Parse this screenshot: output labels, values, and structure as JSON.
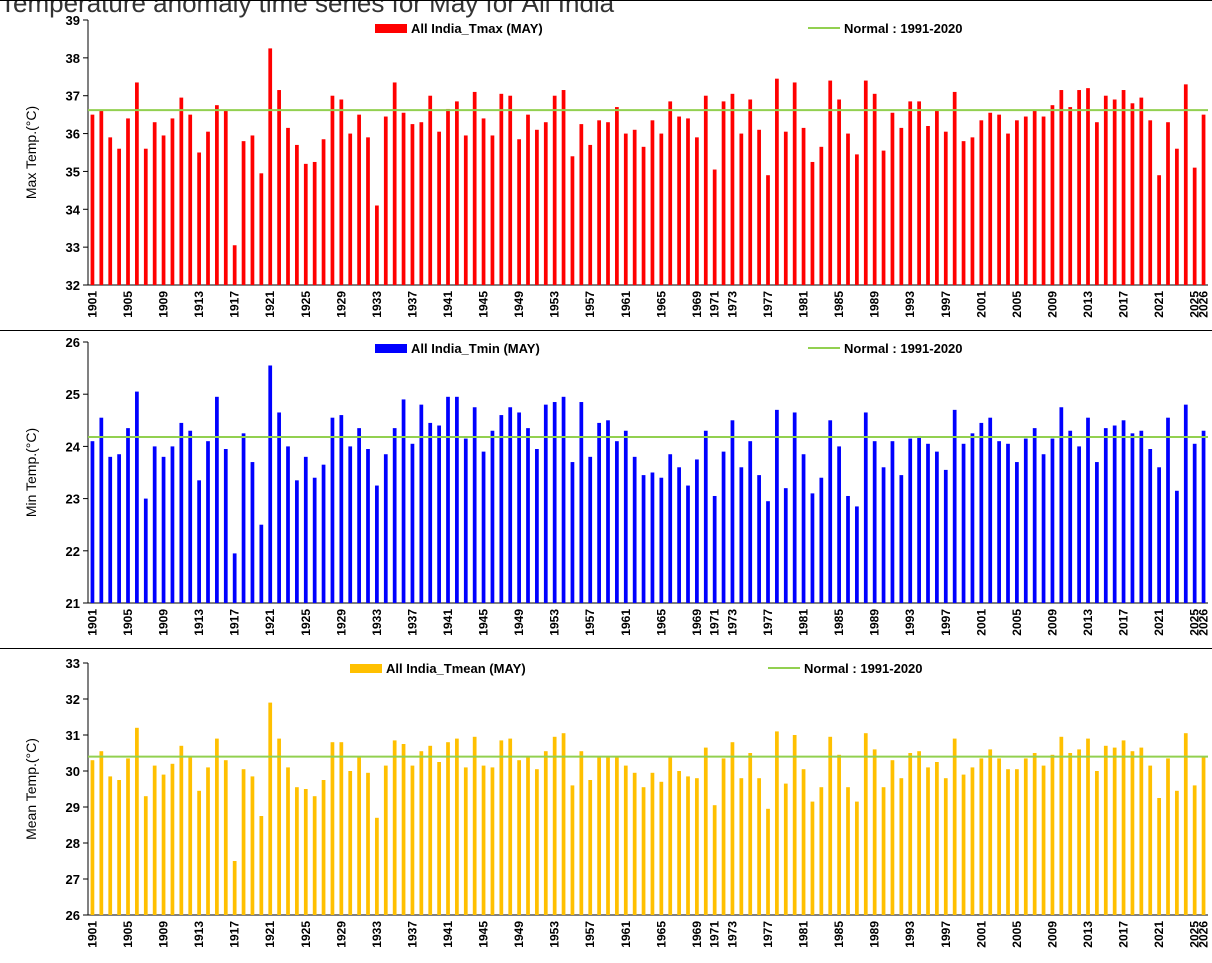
{
  "page": {
    "title": "Temperature anomaly time series for May for All India"
  },
  "chart_data": [
    {
      "type": "bar",
      "ylabel": "Max Temp.(°C)",
      "ylim": [
        32,
        39
      ],
      "yticks": [
        32,
        33,
        34,
        35,
        36,
        37,
        38,
        39
      ],
      "series": [
        {
          "name": "All India_Tmax (MAY)",
          "color": "#ff0000",
          "x": [
            1901,
            1902,
            1903,
            1904,
            1905,
            1906,
            1907,
            1908,
            1909,
            1910,
            1911,
            1912,
            1913,
            1914,
            1915,
            1916,
            1917,
            1918,
            1919,
            1920,
            1921,
            1922,
            1923,
            1924,
            1925,
            1926,
            1927,
            1928,
            1929,
            1930,
            1931,
            1932,
            1933,
            1934,
            1935,
            1936,
            1937,
            1938,
            1939,
            1940,
            1941,
            1942,
            1943,
            1944,
            1945,
            1946,
            1947,
            1948,
            1949,
            1950,
            1951,
            1952,
            1953,
            1954,
            1955,
            1956,
            1957,
            1958,
            1959,
            1960,
            1961,
            1962,
            1963,
            1964,
            1965,
            1966,
            1967,
            1968,
            1969,
            1970,
            1971,
            1972,
            1973,
            1974,
            1975,
            1976,
            1977,
            1978,
            1979,
            1980,
            1981,
            1982,
            1983,
            1984,
            1985,
            1986,
            1987,
            1988,
            1989,
            1990,
            1991,
            1992,
            1993,
            1994,
            1995,
            1996,
            1997,
            1998,
            1999,
            2000,
            2001,
            2002,
            2003,
            2004,
            2005,
            2006,
            2007,
            2008,
            2009,
            2010,
            2011,
            2012,
            2013,
            2014,
            2015,
            2016,
            2017,
            2018,
            2019,
            2020,
            2021,
            2022,
            2023,
            2024,
            2025,
            2026
          ],
          "values": [
            36.5,
            36.6,
            35.9,
            35.6,
            36.4,
            37.35,
            35.6,
            36.3,
            35.95,
            36.4,
            36.95,
            36.5,
            35.5,
            36.05,
            36.75,
            36.6,
            33.05,
            35.8,
            35.95,
            34.95,
            38.25,
            37.15,
            36.15,
            35.7,
            35.2,
            35.25,
            35.85,
            37.0,
            36.9,
            36.0,
            36.5,
            35.9,
            34.1,
            36.45,
            37.35,
            36.55,
            36.25,
            36.3,
            37.0,
            36.05,
            36.65,
            36.85,
            35.95,
            37.1,
            36.4,
            35.95,
            37.05,
            37.0,
            35.85,
            36.5,
            36.1,
            36.3,
            37.0,
            37.15,
            35.4,
            36.25,
            35.7,
            36.35,
            36.3,
            36.7,
            36.0,
            36.1,
            35.65,
            36.35,
            36.0,
            36.85,
            36.45,
            36.4,
            35.9,
            37.0,
            35.05,
            36.85,
            37.05,
            36.0,
            36.9,
            36.1,
            34.9,
            37.45,
            36.05,
            37.35,
            36.15,
            35.25,
            35.65,
            37.4,
            36.9,
            36.0,
            35.45,
            37.4,
            37.05,
            35.55,
            36.55,
            36.15,
            36.85,
            36.85,
            36.2,
            36.6,
            36.05,
            37.1,
            35.8,
            35.9,
            36.35,
            36.55,
            36.5,
            36.0,
            36.35,
            36.45,
            36.6,
            36.45,
            36.75,
            37.15,
            36.7,
            37.15,
            37.2,
            36.3,
            37.0,
            36.9,
            37.15,
            36.8,
            36.95,
            36.35,
            34.9,
            36.3,
            35.6,
            37.3,
            35.1,
            36.5
          ]
        },
        {
          "name": "Normal : 1991-2020",
          "color": "#92d050",
          "values": [
            36.62
          ]
        }
      ]
    },
    {
      "type": "bar",
      "ylabel": "Min Temp.(°C)",
      "ylim": [
        21,
        26
      ],
      "yticks": [
        21,
        22,
        23,
        24,
        25,
        26
      ],
      "series": [
        {
          "name": "All India_Tmin (MAY)",
          "color": "#0000ff",
          "x": [
            1901,
            1902,
            1903,
            1904,
            1905,
            1906,
            1907,
            1908,
            1909,
            1910,
            1911,
            1912,
            1913,
            1914,
            1915,
            1916,
            1917,
            1918,
            1919,
            1920,
            1921,
            1922,
            1923,
            1924,
            1925,
            1926,
            1927,
            1928,
            1929,
            1930,
            1931,
            1932,
            1933,
            1934,
            1935,
            1936,
            1937,
            1938,
            1939,
            1940,
            1941,
            1942,
            1943,
            1944,
            1945,
            1946,
            1947,
            1948,
            1949,
            1950,
            1951,
            1952,
            1953,
            1954,
            1955,
            1956,
            1957,
            1958,
            1959,
            1960,
            1961,
            1962,
            1963,
            1964,
            1965,
            1966,
            1967,
            1968,
            1969,
            1970,
            1971,
            1972,
            1973,
            1974,
            1975,
            1976,
            1977,
            1978,
            1979,
            1980,
            1981,
            1982,
            1983,
            1984,
            1985,
            1986,
            1987,
            1988,
            1989,
            1990,
            1991,
            1992,
            1993,
            1994,
            1995,
            1996,
            1997,
            1998,
            1999,
            2000,
            2001,
            2002,
            2003,
            2004,
            2005,
            2006,
            2007,
            2008,
            2009,
            2010,
            2011,
            2012,
            2013,
            2014,
            2015,
            2016,
            2017,
            2018,
            2019,
            2020,
            2021,
            2022,
            2023,
            2024,
            2025,
            2026
          ],
          "values": [
            24.1,
            24.55,
            23.8,
            23.85,
            24.35,
            25.05,
            23.0,
            24.0,
            23.8,
            24.0,
            24.45,
            24.3,
            23.35,
            24.1,
            24.95,
            23.95,
            21.95,
            24.25,
            23.7,
            22.5,
            25.55,
            24.65,
            24.0,
            23.35,
            23.8,
            23.4,
            23.65,
            24.55,
            24.6,
            24.0,
            24.35,
            23.95,
            23.25,
            23.85,
            24.35,
            24.9,
            24.05,
            24.8,
            24.45,
            24.4,
            24.95,
            24.95,
            24.15,
            24.75,
            23.9,
            24.3,
            24.6,
            24.75,
            24.65,
            24.35,
            23.95,
            24.8,
            24.85,
            24.95,
            23.7,
            24.85,
            23.8,
            24.45,
            24.5,
            24.1,
            24.3,
            23.8,
            23.45,
            23.5,
            23.4,
            23.85,
            23.6,
            23.25,
            23.75,
            24.3,
            23.05,
            23.9,
            24.5,
            23.6,
            24.1,
            23.45,
            22.95,
            24.7,
            23.2,
            24.65,
            23.85,
            23.1,
            23.4,
            24.5,
            24.0,
            23.05,
            22.85,
            24.65,
            24.1,
            23.6,
            24.1,
            23.45,
            24.15,
            24.2,
            24.05,
            23.9,
            23.55,
            24.7,
            24.05,
            24.25,
            24.45,
            24.55,
            24.1,
            24.05,
            23.7,
            24.15,
            24.35,
            23.85,
            24.15,
            24.75,
            24.3,
            24.0,
            24.55,
            23.7,
            24.35,
            24.4,
            24.5,
            24.25,
            24.3,
            23.95,
            23.6,
            24.55,
            23.15,
            24.8,
            24.05,
            24.3
          ]
        },
        {
          "name": "Normal : 1991-2020",
          "color": "#92d050",
          "values": [
            24.18
          ]
        }
      ]
    },
    {
      "type": "bar",
      "ylabel": "Mean Temp.(°C)",
      "ylim": [
        26,
        33
      ],
      "yticks": [
        26,
        27,
        28,
        29,
        30,
        31,
        32,
        33
      ],
      "series": [
        {
          "name": "All India_Tmean (MAY)",
          "color": "#ffc000",
          "x": [
            1901,
            1902,
            1903,
            1904,
            1905,
            1906,
            1907,
            1908,
            1909,
            1910,
            1911,
            1912,
            1913,
            1914,
            1915,
            1916,
            1917,
            1918,
            1919,
            1920,
            1921,
            1922,
            1923,
            1924,
            1925,
            1926,
            1927,
            1928,
            1929,
            1930,
            1931,
            1932,
            1933,
            1934,
            1935,
            1936,
            1937,
            1938,
            1939,
            1940,
            1941,
            1942,
            1943,
            1944,
            1945,
            1946,
            1947,
            1948,
            1949,
            1950,
            1951,
            1952,
            1953,
            1954,
            1955,
            1956,
            1957,
            1958,
            1959,
            1960,
            1961,
            1962,
            1963,
            1964,
            1965,
            1966,
            1967,
            1968,
            1969,
            1970,
            1971,
            1972,
            1973,
            1974,
            1975,
            1976,
            1977,
            1978,
            1979,
            1980,
            1981,
            1982,
            1983,
            1984,
            1985,
            1986,
            1987,
            1988,
            1989,
            1990,
            1991,
            1992,
            1993,
            1994,
            1995,
            1996,
            1997,
            1998,
            1999,
            2000,
            2001,
            2002,
            2003,
            2004,
            2005,
            2006,
            2007,
            2008,
            2009,
            2010,
            2011,
            2012,
            2013,
            2014,
            2015,
            2016,
            2017,
            2018,
            2019,
            2020,
            2021,
            2022,
            2023,
            2024,
            2025,
            2026
          ],
          "values": [
            30.3,
            30.55,
            29.85,
            29.75,
            30.35,
            31.2,
            29.3,
            30.15,
            29.9,
            30.2,
            30.7,
            30.4,
            29.45,
            30.1,
            30.9,
            30.3,
            27.5,
            30.05,
            29.85,
            28.75,
            31.9,
            30.9,
            30.1,
            29.55,
            29.5,
            29.3,
            29.75,
            30.8,
            30.8,
            30.0,
            30.4,
            29.95,
            28.7,
            30.15,
            30.85,
            30.75,
            30.15,
            30.55,
            30.7,
            30.25,
            30.8,
            30.9,
            30.1,
            30.95,
            30.15,
            30.1,
            30.85,
            30.9,
            30.3,
            30.4,
            30.05,
            30.55,
            30.95,
            31.05,
            29.6,
            30.55,
            29.75,
            30.4,
            30.4,
            30.4,
            30.15,
            29.95,
            29.55,
            29.95,
            29.7,
            30.4,
            30.0,
            29.85,
            29.8,
            30.65,
            29.05,
            30.35,
            30.8,
            29.8,
            30.5,
            29.8,
            28.95,
            31.1,
            29.65,
            31.0,
            30.05,
            29.15,
            29.55,
            30.95,
            30.45,
            29.55,
            29.15,
            31.05,
            30.6,
            29.55,
            30.3,
            29.8,
            30.5,
            30.55,
            30.1,
            30.25,
            29.8,
            30.9,
            29.9,
            30.1,
            30.35,
            30.6,
            30.35,
            30.05,
            30.05,
            30.35,
            30.5,
            30.15,
            30.45,
            30.95,
            30.5,
            30.6,
            30.9,
            30.0,
            30.7,
            30.65,
            30.85,
            30.55,
            30.65,
            30.15,
            29.25,
            30.35,
            29.45,
            31.05,
            29.6,
            30.4
          ]
        },
        {
          "name": "Normal : 1991-2020",
          "color": "#92d050",
          "values": [
            30.4
          ]
        }
      ]
    }
  ]
}
